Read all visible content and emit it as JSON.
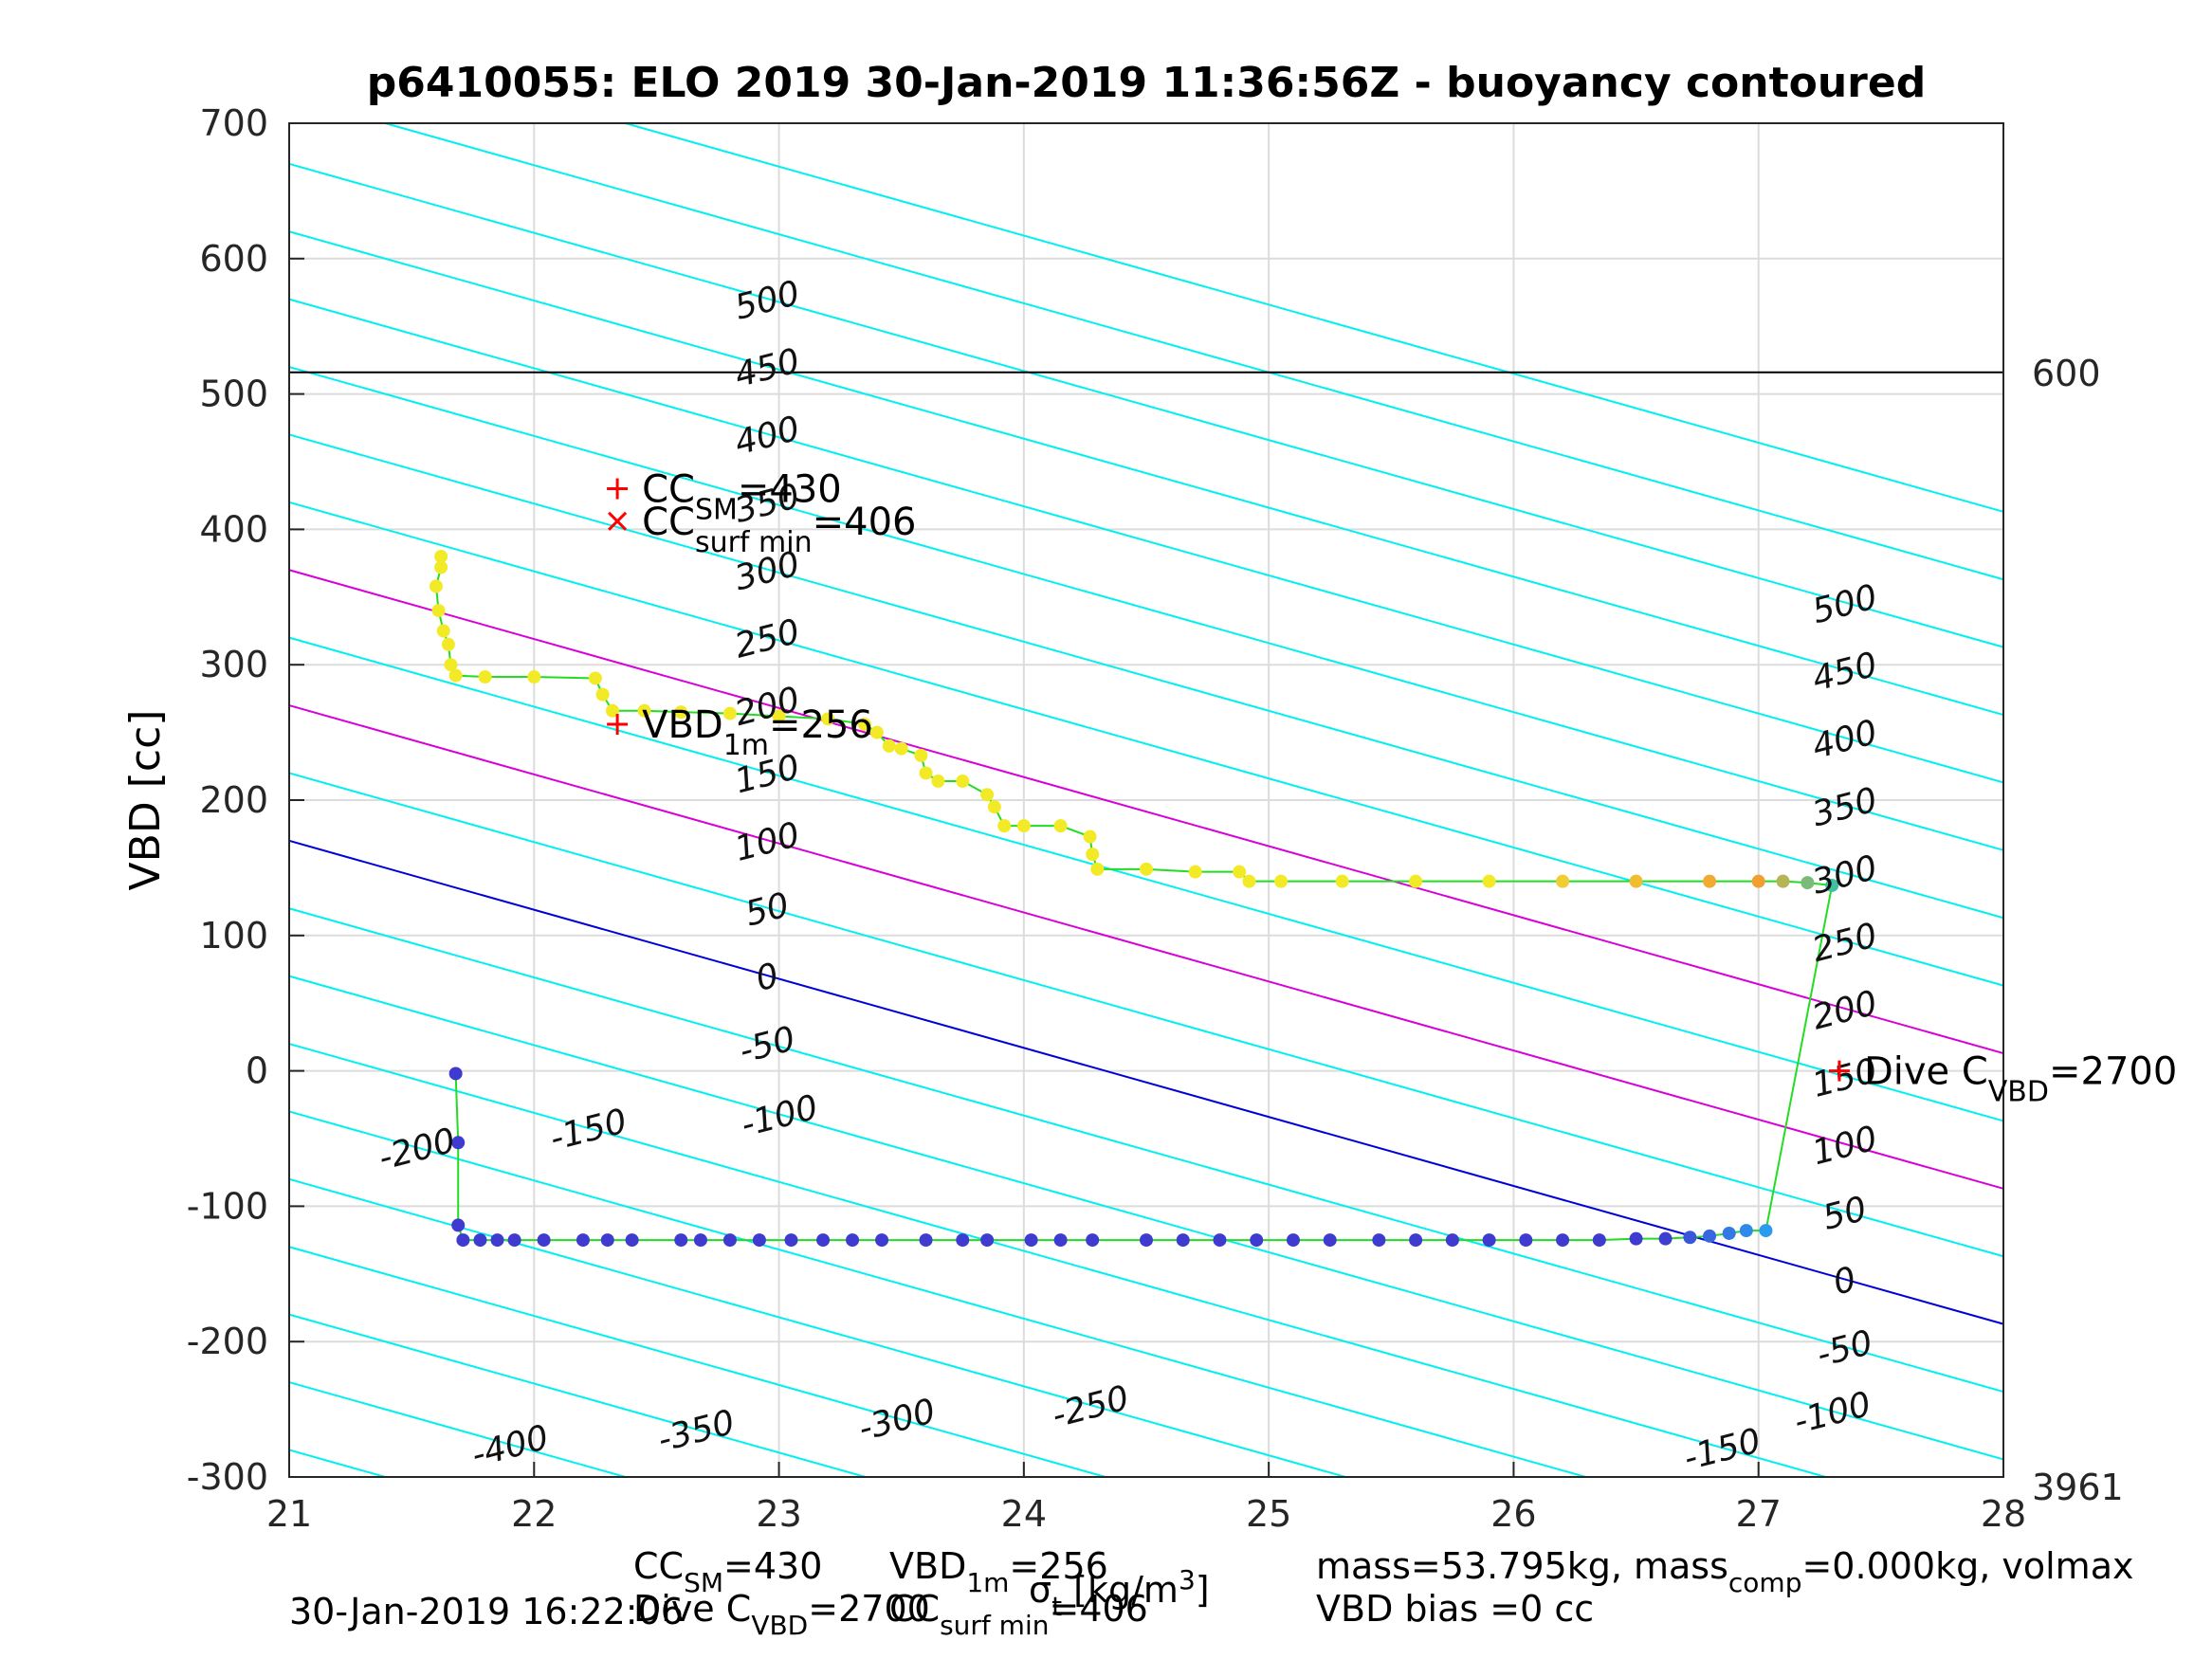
{
  "chart_data": {
    "type": "scatter",
    "title": "p6410055: ELO 2019 30-Jan-2019 11:36:56Z - buoyancy contoured",
    "xlabel": "σ_t [kg/m^3]",
    "ylabel": "VBD [cc]",
    "xlim": [
      21,
      28
    ],
    "ylim": [
      -300,
      700
    ],
    "x_ticks": [
      21,
      22,
      23,
      24,
      25,
      26,
      27,
      28
    ],
    "y_ticks": [
      -300,
      -200,
      -100,
      0,
      100,
      200,
      300,
      400,
      500,
      600,
      700
    ],
    "x_tick_labels": [
      "21",
      "22",
      "23",
      "24",
      "25",
      "26",
      "27",
      "28"
    ],
    "y_tick_labels": [
      "-300",
      "-200",
      "-100",
      "0",
      "100",
      "200",
      "300",
      "400",
      "500",
      "600",
      "700"
    ],
    "grid": true,
    "contours": {
      "levels": [
        -450,
        -400,
        -350,
        -300,
        -250,
        -200,
        -150,
        -100,
        -50,
        0,
        50,
        100,
        150,
        200,
        250,
        300,
        350,
        400,
        450,
        500,
        550,
        600
      ],
      "left_labels": [
        "-400",
        "-350",
        "-300",
        "-250",
        "-200",
        "-150",
        "-100",
        "-50",
        "0",
        "50",
        "100",
        "150",
        "200",
        "250",
        "300",
        "350",
        "400",
        "450",
        "500"
      ],
      "right_labels": [
        "-150",
        "-100",
        "-50",
        "0",
        "50",
        "100",
        "150",
        "200",
        "250",
        "300",
        "350",
        "400",
        "450",
        "500"
      ],
      "zero_color": "#0000d8",
      "highlight_color": "#d800d8",
      "color": "#00f0f0"
    },
    "reference_line": {
      "y": 516,
      "left_label": "600",
      "right_label": "3961"
    },
    "dive_points": {
      "color_start": "#3f3ad0",
      "color_end": "#2aa0f0",
      "trace_color": "#22dd22",
      "descent": [
        [
          21.68,
          -2
        ],
        [
          21.69,
          -53
        ],
        [
          21.69,
          -114
        ],
        [
          21.71,
          -125
        ],
        [
          21.78,
          -125
        ],
        [
          21.85,
          -125
        ],
        [
          21.92,
          -125
        ],
        [
          22.04,
          -125
        ],
        [
          22.2,
          -125
        ],
        [
          22.3,
          -125
        ],
        [
          22.4,
          -125
        ],
        [
          22.6,
          -125
        ],
        [
          22.68,
          -125
        ],
        [
          22.8,
          -125
        ],
        [
          22.92,
          -125
        ],
        [
          23.05,
          -125
        ],
        [
          23.18,
          -125
        ],
        [
          23.3,
          -125
        ],
        [
          23.42,
          -125
        ],
        [
          23.6,
          -125
        ],
        [
          23.75,
          -125
        ],
        [
          23.85,
          -125
        ],
        [
          24.03,
          -125
        ],
        [
          24.15,
          -125
        ],
        [
          24.28,
          -125
        ],
        [
          24.5,
          -125
        ],
        [
          24.65,
          -125
        ],
        [
          24.8,
          -125
        ],
        [
          24.95,
          -125
        ],
        [
          25.1,
          -125
        ],
        [
          25.25,
          -125
        ],
        [
          25.45,
          -125
        ],
        [
          25.6,
          -125
        ],
        [
          25.75,
          -125
        ],
        [
          25.9,
          -125
        ],
        [
          26.05,
          -125
        ],
        [
          26.2,
          -125
        ],
        [
          26.35,
          -125
        ],
        [
          26.5,
          -124
        ],
        [
          26.62,
          -124
        ],
        [
          26.72,
          -123
        ],
        [
          26.8,
          -122
        ],
        [
          26.88,
          -120
        ],
        [
          26.95,
          -118
        ],
        [
          27.03,
          -118
        ]
      ],
      "climb": [
        [
          27.3,
          137
        ],
        [
          27.2,
          139
        ],
        [
          27.1,
          140
        ],
        [
          27.0,
          140
        ],
        [
          26.8,
          140
        ],
        [
          26.5,
          140
        ],
        [
          26.2,
          140
        ],
        [
          25.9,
          140
        ],
        [
          25.6,
          140
        ],
        [
          25.3,
          140
        ],
        [
          25.05,
          140
        ],
        [
          24.92,
          140
        ],
        [
          24.88,
          147
        ],
        [
          24.7,
          147
        ],
        [
          24.5,
          149
        ],
        [
          24.3,
          149
        ],
        [
          24.28,
          160
        ],
        [
          24.27,
          173
        ],
        [
          24.15,
          181
        ],
        [
          24.0,
          181
        ],
        [
          23.92,
          181
        ],
        [
          23.88,
          195
        ],
        [
          23.85,
          204
        ],
        [
          23.75,
          214
        ],
        [
          23.65,
          214
        ],
        [
          23.6,
          220
        ],
        [
          23.58,
          233
        ],
        [
          23.5,
          238
        ],
        [
          23.45,
          240
        ],
        [
          23.4,
          250
        ],
        [
          23.35,
          256
        ],
        [
          23.2,
          260
        ],
        [
          23.0,
          262
        ],
        [
          22.8,
          264
        ],
        [
          22.6,
          265
        ],
        [
          22.45,
          266
        ],
        [
          22.32,
          266
        ],
        [
          22.28,
          278
        ],
        [
          22.25,
          290
        ],
        [
          22.0,
          291
        ],
        [
          21.8,
          291
        ],
        [
          21.68,
          292
        ],
        [
          21.66,
          300
        ],
        [
          21.65,
          315
        ],
        [
          21.63,
          325
        ],
        [
          21.61,
          340
        ],
        [
          21.6,
          358
        ],
        [
          21.62,
          372
        ],
        [
          21.62,
          380
        ]
      ]
    },
    "markers": [
      {
        "label_main": "CC",
        "label_sub": "SM",
        "label_value": "=430",
        "x": 22.34,
        "y": 430,
        "symbol": "+"
      },
      {
        "label_main": "CC",
        "label_sub": "surf min",
        "label_value": "=406",
        "x": 22.34,
        "y": 406,
        "symbol": "x"
      },
      {
        "label_main": "VBD",
        "label_sub": "1m",
        "label_value": "=256",
        "x": 22.34,
        "y": 256,
        "symbol": "+"
      },
      {
        "label_main": "Dive C",
        "label_sub": "VBD",
        "label_value": "=2700",
        "x": 27.33,
        "y": 0,
        "symbol": "+"
      }
    ]
  },
  "footer": {
    "timestamp": "30-Jan-2019 16:22:06",
    "cc_sm": "CC",
    "cc_sm_sub": "SM",
    "cc_sm_value": "=430",
    "dive_c": "Dive C",
    "dive_c_sub": "VBD",
    "dive_c_value": "=2700",
    "vbd": "VBD",
    "vbd_sub": "1m",
    "vbd_value": "=256",
    "cc_surf": "CC",
    "cc_surf_sub": "surf min",
    "cc_surf_value": "=406",
    "mass_text": "mass=53.795kg, mass",
    "mass_sub": "comp",
    "mass_rest": "=0.000kg, volmax",
    "vbd_bias": "VBD bias =0 cc"
  }
}
